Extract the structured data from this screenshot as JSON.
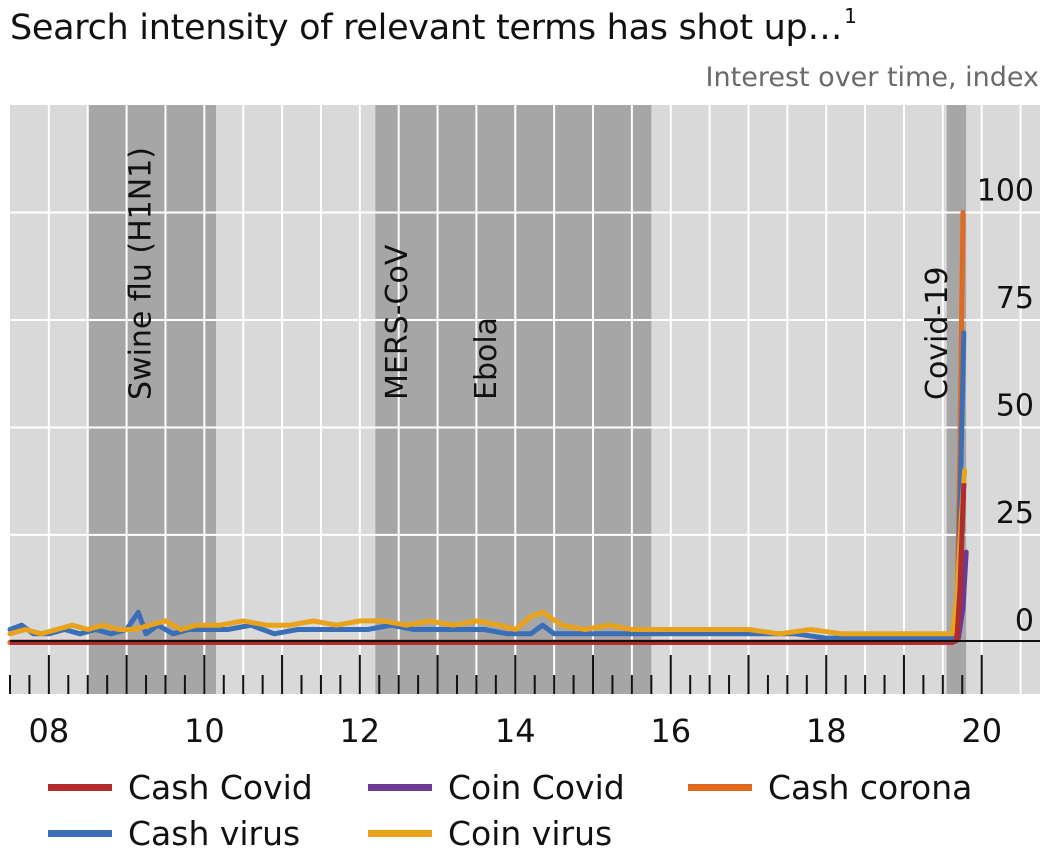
{
  "title": "Search intensity of relevant terms has shot up…",
  "title_footnote": "1",
  "chart_data": {
    "type": "line",
    "subtitle": "Interest over time, index",
    "x_tick_labels": [
      "08",
      "10",
      "12",
      "14",
      "16",
      "18",
      "20"
    ],
    "x_ticks": [
      2008,
      2010,
      2012,
      2014,
      2016,
      2018,
      2020
    ],
    "xlim": [
      2007.5,
      2020.75
    ],
    "ylim": [
      -12,
      125
    ],
    "y_ticks": [
      0,
      25,
      50,
      75,
      100
    ],
    "y_tick_labels": [
      "0",
      "25",
      "50",
      "75",
      "100"
    ],
    "grid": true,
    "legend_position": "bottom",
    "shaded_periods": [
      {
        "label": "Swine flu (H1N1)",
        "start": 2008.5,
        "end": 2010.15
      },
      {
        "label": "MERS-CoV",
        "start": 2012.2,
        "end": 2015.75
      },
      {
        "label": "Ebola",
        "start": 2012.55,
        "end": 2015.5
      },
      {
        "label": "Covid-19",
        "start": 2019.55,
        "end": 2019.8
      }
    ],
    "series": [
      {
        "name": "Cash Covid",
        "color": "#b02a2e",
        "x": [
          2007.5,
          2019.5,
          2019.62,
          2019.68,
          2019.72,
          2019.77
        ],
        "y": [
          0,
          0,
          0,
          0.5,
          12,
          37
        ]
      },
      {
        "name": "Coin Covid",
        "color": "#6b3a91",
        "x": [
          2007.5,
          2019.5,
          2019.62,
          2019.7,
          2019.76,
          2019.8
        ],
        "y": [
          0,
          0,
          0,
          1,
          8,
          21
        ]
      },
      {
        "name": "Cash corona",
        "color": "#e06a1f",
        "x": [
          2007.5,
          2019.5,
          2019.62,
          2019.68,
          2019.72,
          2019.76
        ],
        "y": [
          0,
          0,
          0,
          4,
          45,
          100
        ]
      },
      {
        "name": "Cash virus",
        "color": "#3a6fb8",
        "x": [
          2007.5,
          2007.65,
          2007.8,
          2008.0,
          2008.2,
          2008.4,
          2008.6,
          2008.8,
          2009.0,
          2009.15,
          2009.25,
          2009.4,
          2009.6,
          2009.8,
          2010.0,
          2010.3,
          2010.6,
          2010.9,
          2011.2,
          2011.5,
          2011.8,
          2012.1,
          2012.4,
          2012.7,
          2013.0,
          2013.3,
          2013.6,
          2013.9,
          2014.2,
          2014.35,
          2014.5,
          2014.8,
          2015.1,
          2015.4,
          2015.7,
          2016.0,
          2016.4,
          2016.8,
          2017.2,
          2017.6,
          2018.0,
          2018.4,
          2018.8,
          2019.2,
          2019.5,
          2019.62,
          2019.68,
          2019.72,
          2019.77
        ],
        "y": [
          3,
          4,
          2,
          2,
          3,
          2,
          3,
          2,
          3,
          7,
          2,
          4,
          2,
          3,
          3,
          3,
          4,
          2,
          3,
          3,
          3,
          3,
          4,
          3,
          3,
          3,
          3,
          2,
          2,
          4,
          2,
          2,
          2,
          2,
          2,
          2,
          2,
          2,
          2,
          2,
          1,
          1,
          1,
          1,
          1,
          1,
          3,
          30,
          72
        ]
      },
      {
        "name": "Coin virus",
        "color": "#e8a21c",
        "x": [
          2007.5,
          2007.7,
          2007.9,
          2008.1,
          2008.3,
          2008.5,
          2008.7,
          2008.9,
          2009.1,
          2009.3,
          2009.5,
          2009.7,
          2009.9,
          2010.2,
          2010.5,
          2010.8,
          2011.1,
          2011.4,
          2011.7,
          2012.0,
          2012.3,
          2012.6,
          2012.9,
          2013.2,
          2013.5,
          2013.8,
          2014.0,
          2014.2,
          2014.35,
          2014.6,
          2014.9,
          2015.2,
          2015.5,
          2015.8,
          2016.2,
          2016.6,
          2017.0,
          2017.4,
          2017.8,
          2018.2,
          2018.6,
          2019.0,
          2019.3,
          2019.5,
          2019.62,
          2019.68,
          2019.74,
          2019.78
        ],
        "y": [
          2,
          3,
          2,
          3,
          4,
          3,
          4,
          3,
          3,
          4,
          5,
          3,
          4,
          4,
          5,
          4,
          4,
          5,
          4,
          5,
          5,
          4,
          5,
          4,
          5,
          4,
          3,
          6,
          7,
          4,
          3,
          4,
          3,
          3,
          3,
          3,
          3,
          2,
          3,
          2,
          2,
          2,
          2,
          2,
          2,
          10,
          30,
          40
        ]
      }
    ]
  }
}
